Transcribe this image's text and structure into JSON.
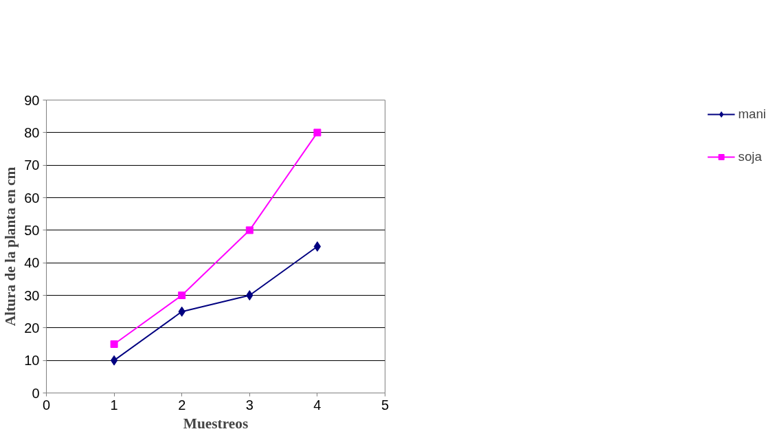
{
  "chart_data": {
    "type": "line",
    "xlabel": "Muestreos",
    "ylabel": "Altura de la planta en cm",
    "x": [
      1,
      2,
      3,
      4
    ],
    "series": [
      {
        "name": "mani",
        "color": "#000080",
        "values": [
          10,
          25,
          30,
          45
        ],
        "marker": "diamond"
      },
      {
        "name": "soja",
        "color": "#ff00ff",
        "values": [
          15,
          30,
          50,
          80
        ],
        "marker": "square"
      }
    ],
    "xlim": [
      0,
      5
    ],
    "xticks": [
      0,
      1,
      2,
      3,
      4,
      5
    ],
    "ylim": [
      0,
      90
    ],
    "yticks": [
      0,
      10,
      20,
      30,
      40,
      50,
      60,
      70,
      80,
      90
    ],
    "grid": "y",
    "legend": "right",
    "line_style": "solid"
  }
}
